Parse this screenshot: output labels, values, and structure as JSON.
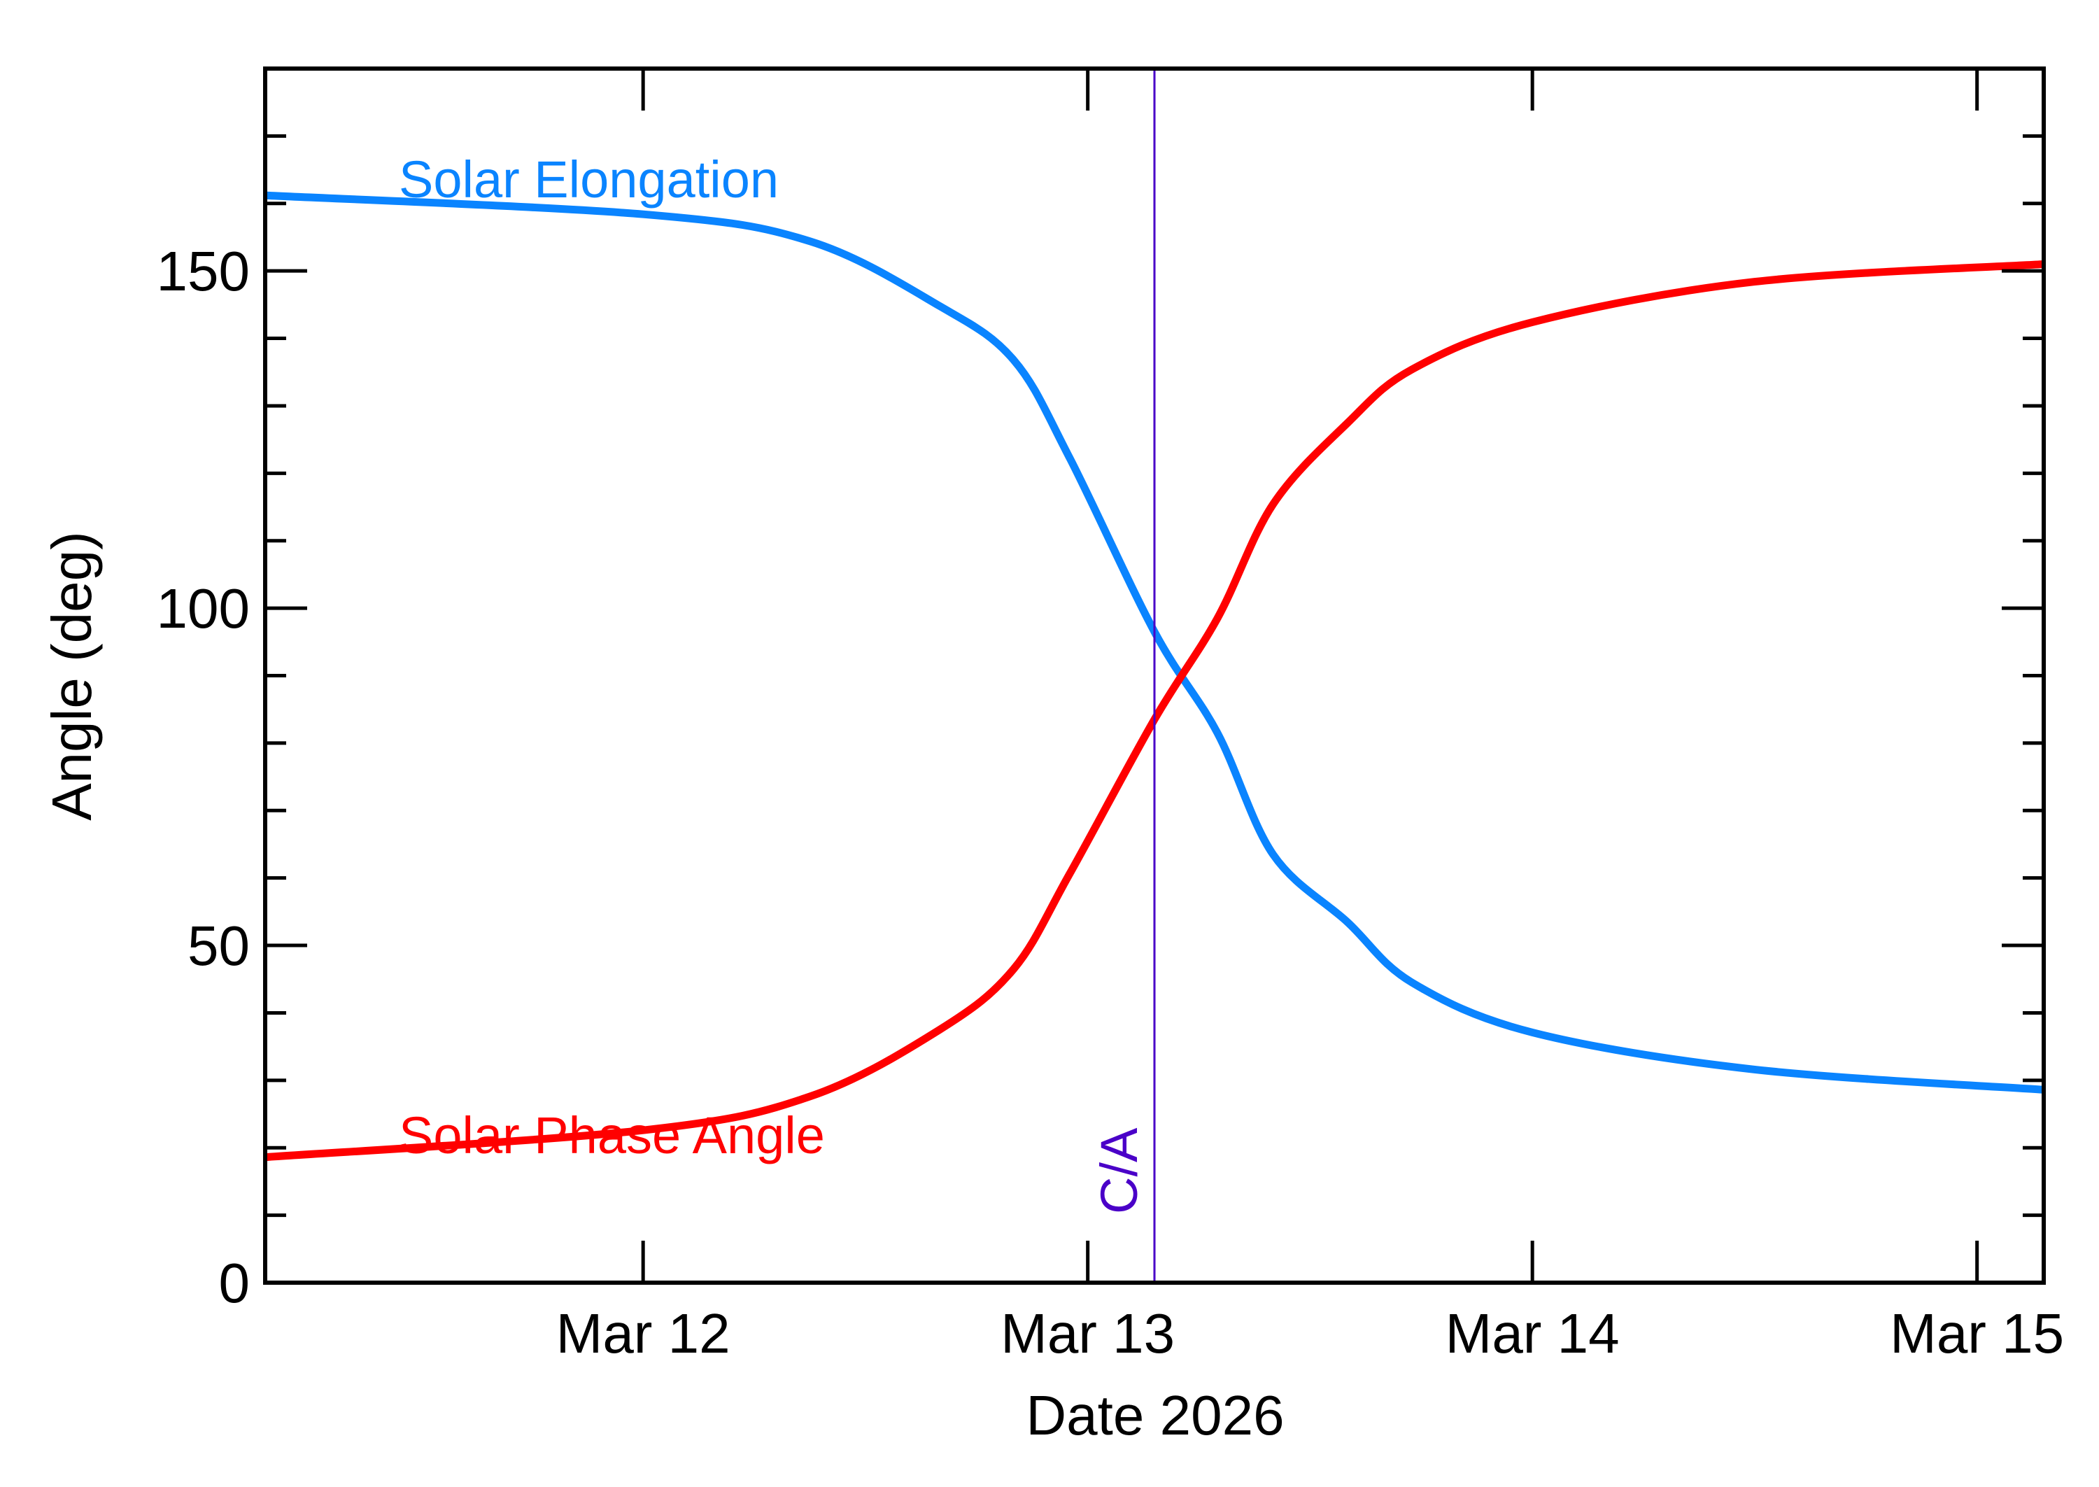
{
  "chart_data": {
    "type": "line",
    "title": "",
    "xlabel": "Date 2026",
    "ylabel": "Angle (deg)",
    "xlim": [
      "2026-03-11T03:36",
      "2026-03-15T03:36"
    ],
    "ylim": [
      0,
      180
    ],
    "grid": false,
    "x_ticks": [
      {
        "value": "2026-03-12T00:00",
        "label": "Mar 12"
      },
      {
        "value": "2026-03-13T00:00",
        "label": "Mar 13"
      },
      {
        "value": "2026-03-14T00:00",
        "label": "Mar 14"
      },
      {
        "value": "2026-03-15T00:00",
        "label": "Mar 15"
      }
    ],
    "y_ticks": [
      {
        "value": 0,
        "label": "0"
      },
      {
        "value": 50,
        "label": "50"
      },
      {
        "value": 100,
        "label": "100"
      },
      {
        "value": 150,
        "label": "150"
      }
    ],
    "y_minor_step": 10,
    "annotations": [
      {
        "type": "vline",
        "x": "2026-03-13T03:36",
        "label": "C/A",
        "color": "#4a00c8"
      }
    ],
    "series": [
      {
        "name": "Solar Elongation",
        "color": "#0a84ff",
        "x": [
          "2026-03-11T03:36",
          "2026-03-12T00:00",
          "2026-03-12T09:00",
          "2026-03-12T16:00",
          "2026-03-12T20:00",
          "2026-03-12T23:00",
          "2026-03-13T03:36",
          "2026-03-13T07:00",
          "2026-03-13T10:00",
          "2026-03-13T14:00",
          "2026-03-13T17:30",
          "2026-03-14T00:00",
          "2026-03-14T12:00",
          "2026-03-15T03:36"
        ],
        "y": [
          161.2,
          158.4,
          154.4,
          144.8,
          136.8,
          122.4,
          96.5,
          81.5,
          63.5,
          53.5,
          44.5,
          37.1,
          31.6,
          28.6
        ]
      },
      {
        "name": "Solar Phase Angle",
        "color": "#ff0000",
        "x": [
          "2026-03-11T03:36",
          "2026-03-12T00:00",
          "2026-03-12T09:00",
          "2026-03-12T16:00",
          "2026-03-12T20:00",
          "2026-03-12T23:00",
          "2026-03-13T03:36",
          "2026-03-13T07:00",
          "2026-03-13T10:00",
          "2026-03-13T14:00",
          "2026-03-13T17:30",
          "2026-03-14T00:00",
          "2026-03-14T12:00",
          "2026-03-15T03:36"
        ],
        "y": [
          18.6,
          22.6,
          27.6,
          37.5,
          46.5,
          60.5,
          83.5,
          98.5,
          115.4,
          127.4,
          135.4,
          142.4,
          148.4,
          151.0
        ]
      }
    ]
  }
}
